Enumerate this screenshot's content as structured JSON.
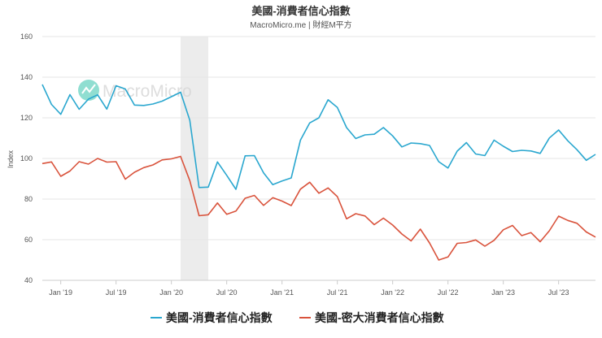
{
  "colors": {
    "series_1": "#2aa7cf",
    "series_2": "#d9533c",
    "recession_band": "#ececec",
    "watermark_logo": "#7dd9c9"
  },
  "watermark": {
    "text": "MacroMicro",
    "icon": "macromicro-logo-icon"
  },
  "chart_data": {
    "type": "line",
    "title": "美國-消費者信心指數",
    "subtitle": "MacroMicro.me | 財經M平方",
    "ylabel": "Index",
    "xlabel": "",
    "ylim": [
      40,
      160
    ],
    "yticks": [
      40,
      60,
      80,
      100,
      120,
      140,
      160
    ],
    "xlim": [
      "2018-11",
      "2023-11"
    ],
    "xticks": [
      {
        "label": "Jan '19",
        "date": "2019-01"
      },
      {
        "label": "Jul '19",
        "date": "2019-07"
      },
      {
        "label": "Jan '20",
        "date": "2020-01"
      },
      {
        "label": "Jul '20",
        "date": "2020-07"
      },
      {
        "label": "Jan '21",
        "date": "2021-01"
      },
      {
        "label": "Jul '21",
        "date": "2021-07"
      },
      {
        "label": "Jan '22",
        "date": "2022-01"
      },
      {
        "label": "Jul '22",
        "date": "2022-07"
      },
      {
        "label": "Jan '23",
        "date": "2023-01"
      },
      {
        "label": "Jul '23",
        "date": "2023-07"
      }
    ],
    "shaded_band": {
      "start": "2020-02",
      "end": "2020-05"
    },
    "grid": true,
    "legend_position": "bottom",
    "x": [
      "2018-11",
      "2018-12",
      "2019-01",
      "2019-02",
      "2019-03",
      "2019-04",
      "2019-05",
      "2019-06",
      "2019-07",
      "2019-08",
      "2019-09",
      "2019-10",
      "2019-11",
      "2019-12",
      "2020-01",
      "2020-02",
      "2020-03",
      "2020-04",
      "2020-05",
      "2020-06",
      "2020-07",
      "2020-08",
      "2020-09",
      "2020-10",
      "2020-11",
      "2020-12",
      "2021-01",
      "2021-02",
      "2021-03",
      "2021-04",
      "2021-05",
      "2021-06",
      "2021-07",
      "2021-08",
      "2021-09",
      "2021-10",
      "2021-11",
      "2021-12",
      "2022-01",
      "2022-02",
      "2022-03",
      "2022-04",
      "2022-05",
      "2022-06",
      "2022-07",
      "2022-08",
      "2022-09",
      "2022-10",
      "2022-11",
      "2022-12",
      "2023-01",
      "2023-02",
      "2023-03",
      "2023-04",
      "2023-05",
      "2023-06",
      "2023-07",
      "2023-08",
      "2023-09",
      "2023-10",
      "2023-11"
    ],
    "series": [
      {
        "name": "美國-消費者信心指數",
        "values": [
          136.4,
          126.6,
          121.7,
          131.4,
          124.2,
          129.2,
          131.3,
          124.3,
          135.8,
          134.2,
          126.3,
          126.1,
          126.8,
          128.2,
          130.4,
          132.6,
          118.8,
          85.7,
          85.9,
          98.3,
          91.7,
          84.8,
          101.3,
          101.4,
          92.9,
          87.1,
          88.9,
          90.4,
          109.0,
          117.5,
          120.0,
          128.9,
          125.1,
          115.2,
          109.8,
          111.6,
          111.9,
          115.2,
          111.1,
          105.7,
          107.6,
          107.3,
          106.4,
          98.4,
          95.3,
          103.6,
          107.8,
          102.2,
          101.4,
          109.0,
          106.0,
          103.4,
          104.0,
          103.7,
          102.5,
          110.1,
          114.0,
          108.7,
          104.3,
          99.1,
          102.0
        ]
      },
      {
        "name": "美國-密大消費者信心指數",
        "values": [
          97.5,
          98.3,
          91.2,
          93.8,
          98.4,
          97.2,
          100.0,
          98.2,
          98.4,
          89.8,
          93.2,
          95.5,
          96.8,
          99.3,
          99.8,
          101.0,
          89.1,
          71.8,
          72.3,
          78.1,
          72.5,
          74.1,
          80.4,
          81.8,
          76.9,
          80.7,
          79.0,
          76.8,
          84.9,
          88.3,
          82.9,
          85.5,
          81.2,
          70.3,
          72.8,
          71.7,
          67.4,
          70.6,
          67.2,
          62.8,
          59.4,
          65.2,
          58.4,
          50.0,
          51.5,
          58.2,
          58.6,
          59.9,
          56.8,
          59.7,
          64.9,
          67.0,
          62.0,
          63.5,
          59.0,
          64.4,
          71.6,
          69.5,
          68.1,
          63.8,
          61.3
        ]
      }
    ]
  }
}
